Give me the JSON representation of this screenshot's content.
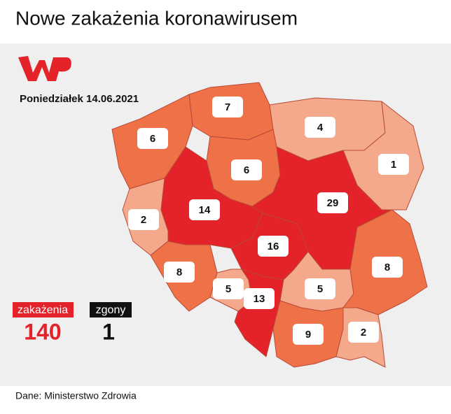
{
  "header": {
    "title": "Nowe zakażenia koronawirusem"
  },
  "date": "Poniedziałek 14.06.2021",
  "regions": [
    {
      "value": 7,
      "color": "#ef7148"
    },
    {
      "value": 6,
      "color": "#ef7148"
    },
    {
      "value": 4,
      "color": "#f5a98c"
    },
    {
      "value": 1,
      "color": "#f5a98c"
    },
    {
      "value": 6,
      "color": "#ef7148"
    },
    {
      "value": 2,
      "color": "#f5a98c"
    },
    {
      "value": 14,
      "color": "#e3222a"
    },
    {
      "value": 29,
      "color": "#e3222a"
    },
    {
      "value": 16,
      "color": "#e3222a"
    },
    {
      "value": 8,
      "color": "#ef7148"
    },
    {
      "value": 5,
      "color": "#f5a98c"
    },
    {
      "value": 13,
      "color": "#e3222a"
    },
    {
      "value": 5,
      "color": "#f5a98c"
    },
    {
      "value": 9,
      "color": "#ef7148"
    },
    {
      "value": 8,
      "color": "#ef7148"
    },
    {
      "value": 2,
      "color": "#f5a98c"
    }
  ],
  "totals": {
    "cases_label": "zakażenia",
    "cases": 140,
    "deaths_label": "zgony",
    "deaths": 1
  },
  "source": "Dane: Ministerstwo Zdrowia"
}
